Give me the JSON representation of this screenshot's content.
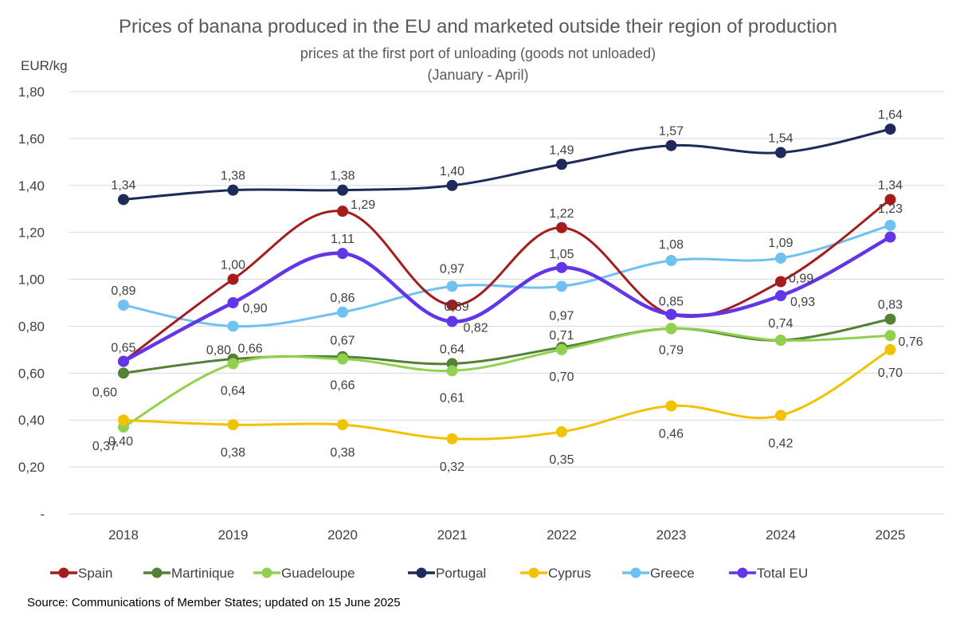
{
  "chart_data": {
    "type": "line",
    "title": "Prices of banana produced in the EU and marketed outside their region of production",
    "subtitle": "prices at the first port of unloading  (goods not unloaded)",
    "subtitle2": "(January - April)",
    "ylabel": "EUR/kg",
    "xlabel": "",
    "x": [
      "2018",
      "2019",
      "2020",
      "2021",
      "2022",
      "2023",
      "2024",
      "2025"
    ],
    "ylim": [
      0,
      1.8
    ],
    "yticks": [
      {
        "value": 0,
        "label": "-"
      },
      {
        "value": 0.2,
        "label": "0,20"
      },
      {
        "value": 0.4,
        "label": "0,40"
      },
      {
        "value": 0.6,
        "label": "0,60"
      },
      {
        "value": 0.8,
        "label": "0,80"
      },
      {
        "value": 1.0,
        "label": "1,00"
      },
      {
        "value": 1.2,
        "label": "1,20"
      },
      {
        "value": 1.4,
        "label": "1,40"
      },
      {
        "value": 1.6,
        "label": "1,60"
      },
      {
        "value": 1.8,
        "label": "1,80"
      }
    ],
    "grid": true,
    "legend_position": "bottom",
    "series": [
      {
        "name": "Spain",
        "color": "#a51c1c",
        "values": [
          0.65,
          1.0,
          1.29,
          0.89,
          1.22,
          0.85,
          0.99,
          1.34
        ],
        "labels": [
          "0,65",
          "1,00",
          "1,29",
          "0,89",
          "1,22",
          "",
          "0,99",
          "1,34"
        ]
      },
      {
        "name": "Martinique",
        "color": "#548235",
        "values": [
          0.6,
          0.66,
          0.67,
          0.64,
          0.71,
          0.79,
          0.74,
          0.83
        ],
        "labels": [
          "0,60",
          "0,66",
          "0,67",
          "0,64",
          "0,71",
          "0,79",
          "0,74",
          "0,83"
        ]
      },
      {
        "name": "Guadeloupe",
        "color": "#92d050",
        "values": [
          0.37,
          0.64,
          0.66,
          0.61,
          0.7,
          0.79,
          0.74,
          0.76
        ],
        "labels": [
          "0,37",
          "0,64",
          "0,66",
          "0,61",
          "0,70",
          "",
          "",
          "0,76"
        ]
      },
      {
        "name": "Portugal",
        "color": "#1f2a5c",
        "values": [
          1.34,
          1.38,
          1.38,
          1.4,
          1.49,
          1.57,
          1.54,
          1.64
        ],
        "labels": [
          "1,34",
          "1,38",
          "1,38",
          "1,40",
          "1,49",
          "1,57",
          "1,54",
          "1,64"
        ]
      },
      {
        "name": "Cyprus",
        "color": "#f2c200",
        "values": [
          0.4,
          0.38,
          0.38,
          0.32,
          0.35,
          0.46,
          0.42,
          0.7
        ],
        "labels": [
          "0,40",
          "0,38",
          "0,38",
          "0,32",
          "0,35",
          "0,46",
          "0,42",
          "0,70"
        ]
      },
      {
        "name": "Greece",
        "color": "#6ec1f0",
        "values": [
          0.89,
          0.8,
          0.86,
          0.97,
          0.97,
          1.08,
          1.09,
          1.23
        ],
        "labels": [
          "0,89",
          "0,80",
          "0,86",
          "0,97",
          "0,97",
          "1,08",
          "1,09",
          "1,23"
        ]
      },
      {
        "name": "Total EU",
        "color": "#6236e8",
        "values": [
          0.65,
          0.9,
          1.11,
          0.82,
          1.05,
          0.85,
          0.93,
          1.18
        ],
        "labels": [
          "",
          "0,90",
          "1,11",
          "0,82",
          "1,05",
          "0,85",
          "0,93",
          ""
        ]
      }
    ],
    "source": "Source: Communications of Member States; updated on 15 June 2025"
  }
}
